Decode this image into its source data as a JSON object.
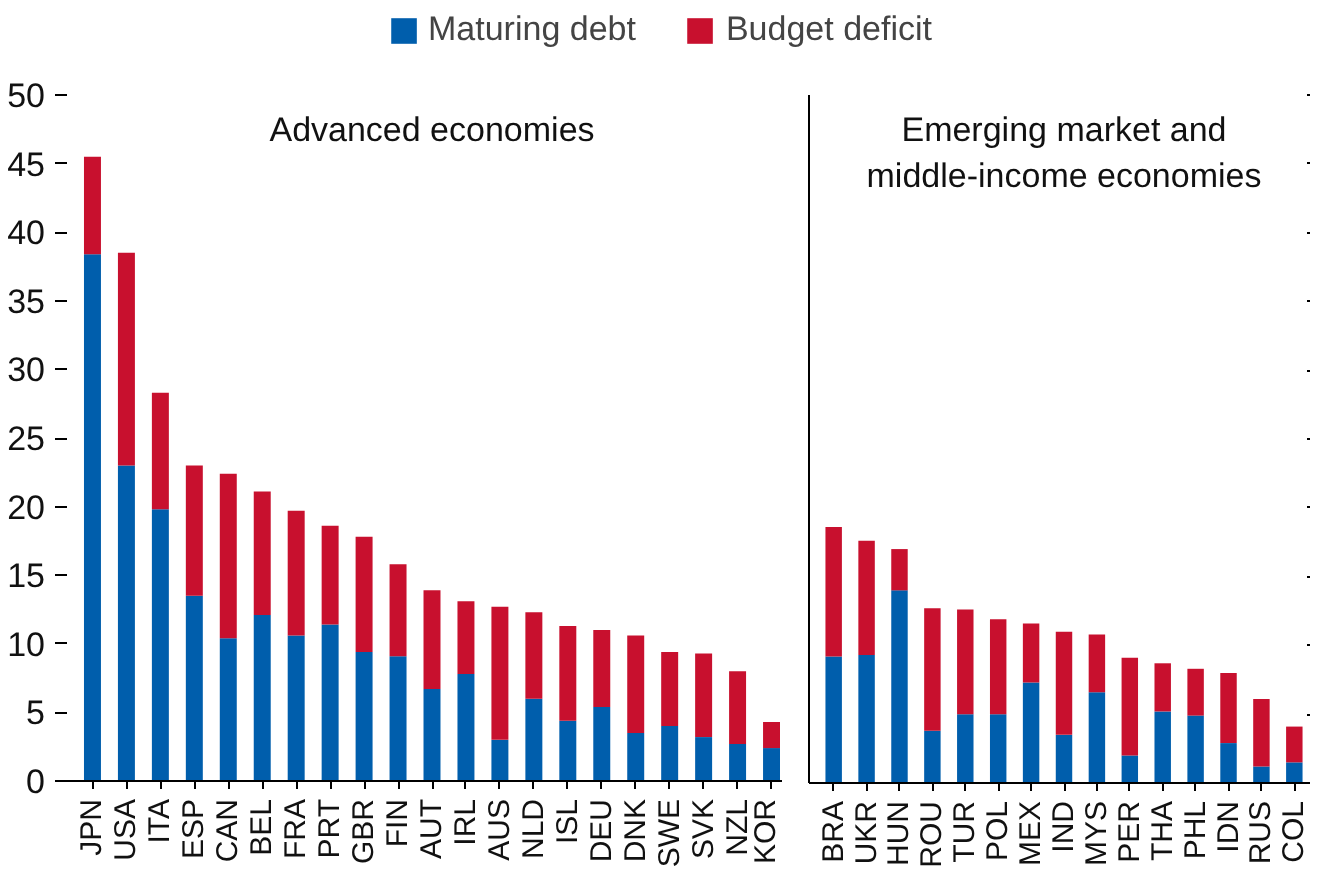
{
  "chart_data": [
    {
      "type": "bar",
      "stacked": true,
      "title": "Advanced economies",
      "legend": "top",
      "grid": false,
      "categories": [
        "JPN",
        "USA",
        "ITA",
        "ESP",
        "CAN",
        "BEL",
        "FRA",
        "PRT",
        "GBR",
        "FIN",
        "AUT",
        "IRL",
        "AUS",
        "NLD",
        "ISL",
        "DEU",
        "DNK",
        "SWE",
        "SVK",
        "NZL",
        "KOR"
      ],
      "ylim": [
        0,
        50
      ],
      "yticks": [
        0,
        5,
        10,
        15,
        20,
        25,
        30,
        35,
        40,
        45,
        50
      ],
      "series": [
        {
          "name": "Maturing debt",
          "color": "#005eac",
          "values": [
            38.4,
            23.0,
            19.8,
            13.5,
            10.4,
            12.1,
            10.6,
            11.4,
            9.4,
            9.1,
            6.7,
            7.8,
            3.0,
            6.0,
            4.4,
            5.4,
            3.5,
            4.0,
            3.2,
            2.7,
            2.4
          ]
        },
        {
          "name": "Budget deficit",
          "color": "#c8102e",
          "values": [
            7.1,
            15.5,
            8.5,
            9.5,
            12.0,
            9.0,
            9.1,
            7.2,
            8.4,
            6.7,
            7.2,
            5.3,
            9.7,
            6.3,
            6.9,
            5.6,
            7.1,
            5.4,
            6.1,
            5.3,
            1.9
          ]
        }
      ]
    },
    {
      "type": "bar",
      "stacked": true,
      "title": "Emerging market and\nmiddle-income economies",
      "grid": false,
      "tick_labels": "x",
      "categories": [
        "BRA",
        "UKR",
        "HUN",
        "ROU",
        "TUR",
        "POL",
        "MEX",
        "IND",
        "MYS",
        "PER",
        "THA",
        "PHL",
        "IDN",
        "RUS",
        "COL"
      ],
      "ylim": [
        0,
        50
      ],
      "yticks": [
        0,
        5,
        10,
        15,
        20,
        25,
        30,
        35,
        40,
        45,
        50
      ],
      "series": [
        {
          "color": "#005eac",
          "values": [
            9.2,
            9.3,
            14.0,
            3.8,
            5.0,
            5.0,
            7.3,
            3.5,
            6.6,
            2.0,
            5.2,
            4.9,
            2.9,
            1.2,
            1.5
          ]
        },
        {
          "color": "#c8102e",
          "values": [
            9.4,
            8.3,
            3.0,
            8.9,
            7.6,
            6.9,
            4.3,
            7.5,
            4.2,
            7.1,
            3.5,
            3.4,
            5.1,
            4.9,
            2.6
          ]
        }
      ]
    }
  ]
}
